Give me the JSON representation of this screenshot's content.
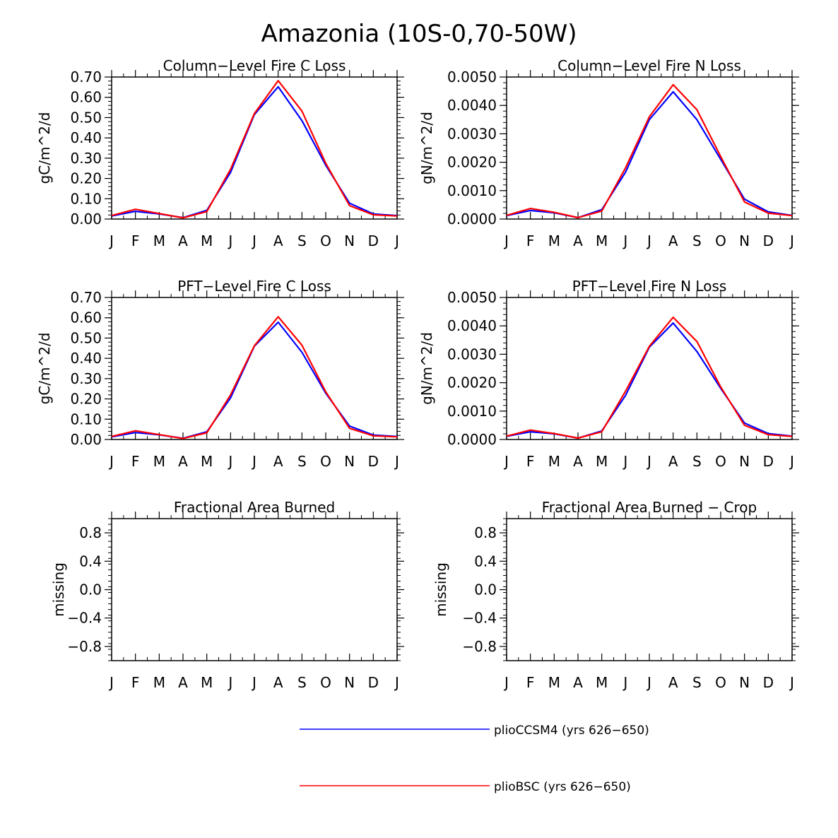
{
  "title": "Amazonia (10S-0,70-50W)",
  "months": [
    "J",
    "F",
    "M",
    "A",
    "M",
    "J",
    "J",
    "A",
    "S",
    "O",
    "N",
    "D",
    "J"
  ],
  "colors": {
    "pliocCSM4": "#0000ff",
    "plioBSC": "#ff0000",
    "axis": "#000000"
  },
  "legend": [
    {
      "label": "plioCCSM4 (yrs 626-650)",
      "color": "#0000ff"
    },
    {
      "label": "plioBSC (yrs 626-650)",
      "color": "#ff0000"
    }
  ],
  "chart_data": [
    {
      "type": "line",
      "title": "Column-Level Fire C Loss",
      "ylabel": "gC/m^2/d",
      "ylim": [
        0,
        0.7
      ],
      "yticks": [
        0,
        0.1,
        0.2,
        0.3,
        0.4,
        0.5,
        0.6,
        0.7
      ],
      "ytick_labels": [
        "0.00",
        "0.10",
        "0.20",
        "0.30",
        "0.40",
        "0.50",
        "0.60",
        "0.70"
      ],
      "series": [
        {
          "name": "plioCCSM4 (yrs 626-650)",
          "color": "#0000ff",
          "values": [
            0.015,
            0.038,
            0.025,
            0.007,
            0.043,
            0.23,
            0.515,
            0.652,
            0.485,
            0.265,
            0.078,
            0.025,
            0.017
          ]
        },
        {
          "name": "plioBSC (yrs 626-650)",
          "color": "#ff0000",
          "values": [
            0.017,
            0.048,
            0.027,
            0.006,
            0.037,
            0.245,
            0.52,
            0.682,
            0.532,
            0.275,
            0.066,
            0.021,
            0.015
          ]
        }
      ]
    },
    {
      "type": "line",
      "title": "Column-Level Fire N Loss",
      "ylabel": "gN/m^2/d",
      "ylim": [
        0,
        0.005
      ],
      "yticks": [
        0,
        0.001,
        0.002,
        0.003,
        0.004,
        0.005
      ],
      "ytick_labels": [
        "0.0000",
        "0.0010",
        "0.0020",
        "0.0030",
        "0.0040",
        "0.0050"
      ],
      "series": [
        {
          "name": "plioCCSM4 (yrs 626-650)",
          "color": "#0000ff",
          "values": [
            0.00012,
            0.0003,
            0.00022,
            5e-05,
            0.00033,
            0.00165,
            0.0035,
            0.00448,
            0.0035,
            0.0021,
            0.0007,
            0.00025,
            0.00013
          ]
        },
        {
          "name": "plioBSC (yrs 626-650)",
          "color": "#ff0000",
          "values": [
            0.00013,
            0.00037,
            0.00024,
            5e-05,
            0.00028,
            0.0018,
            0.0036,
            0.00473,
            0.00385,
            0.0022,
            0.0006,
            0.00021,
            0.00012
          ]
        }
      ]
    },
    {
      "type": "line",
      "title": "PFT-Level Fire C Loss",
      "ylabel": "gC/m^2/d",
      "ylim": [
        0,
        0.7
      ],
      "yticks": [
        0,
        0.1,
        0.2,
        0.3,
        0.4,
        0.5,
        0.6,
        0.7
      ],
      "ytick_labels": [
        "0.00",
        "0.10",
        "0.20",
        "0.30",
        "0.40",
        "0.50",
        "0.60",
        "0.70"
      ],
      "series": [
        {
          "name": "plioCCSM4 (yrs 626-650)",
          "color": "#0000ff",
          "values": [
            0.013,
            0.034,
            0.023,
            0.006,
            0.038,
            0.205,
            0.46,
            0.578,
            0.43,
            0.228,
            0.066,
            0.022,
            0.015
          ]
        },
        {
          "name": "plioBSC (yrs 626-650)",
          "color": "#ff0000",
          "values": [
            0.015,
            0.043,
            0.024,
            0.005,
            0.033,
            0.22,
            0.462,
            0.605,
            0.465,
            0.235,
            0.055,
            0.018,
            0.013
          ]
        }
      ]
    },
    {
      "type": "line",
      "title": "PFT-Level Fire N Loss",
      "ylabel": "gN/m^2/d",
      "ylim": [
        0,
        0.005
      ],
      "yticks": [
        0,
        0.001,
        0.002,
        0.003,
        0.004,
        0.005
      ],
      "ytick_labels": [
        "0.0000",
        "0.0010",
        "0.0020",
        "0.0030",
        "0.0040",
        "0.0050"
      ],
      "series": [
        {
          "name": "plioCCSM4 (yrs 626-650)",
          "color": "#0000ff",
          "values": [
            0.00011,
            0.00027,
            0.0002,
            5e-05,
            0.0003,
            0.00155,
            0.00325,
            0.0041,
            0.0031,
            0.0018,
            0.00058,
            0.00021,
            0.00012
          ]
        },
        {
          "name": "plioBSC (yrs 626-650)",
          "color": "#ff0000",
          "values": [
            0.00012,
            0.00033,
            0.00021,
            5e-05,
            0.00027,
            0.0017,
            0.00328,
            0.0043,
            0.00345,
            0.00185,
            0.0005,
            0.00017,
            0.00011
          ]
        }
      ]
    },
    {
      "type": "line",
      "title": "Fractional Area Burned",
      "ylabel": "missing",
      "ylim": [
        -1,
        1
      ],
      "yticks": [
        -0.8,
        -0.4,
        0.0,
        0.4,
        0.8
      ],
      "ytick_labels": [
        "-0.8",
        "-0.4",
        "0.0",
        "0.4",
        "0.8"
      ],
      "series": []
    },
    {
      "type": "line",
      "title": "Fractional Area Burned - Crop",
      "ylabel": "missing",
      "ylim": [
        -1,
        1
      ],
      "yticks": [
        -0.8,
        -0.4,
        0.0,
        0.4,
        0.8
      ],
      "ytick_labels": [
        "-0.8",
        "-0.4",
        "0.0",
        "0.4",
        "0.8"
      ],
      "series": []
    }
  ]
}
